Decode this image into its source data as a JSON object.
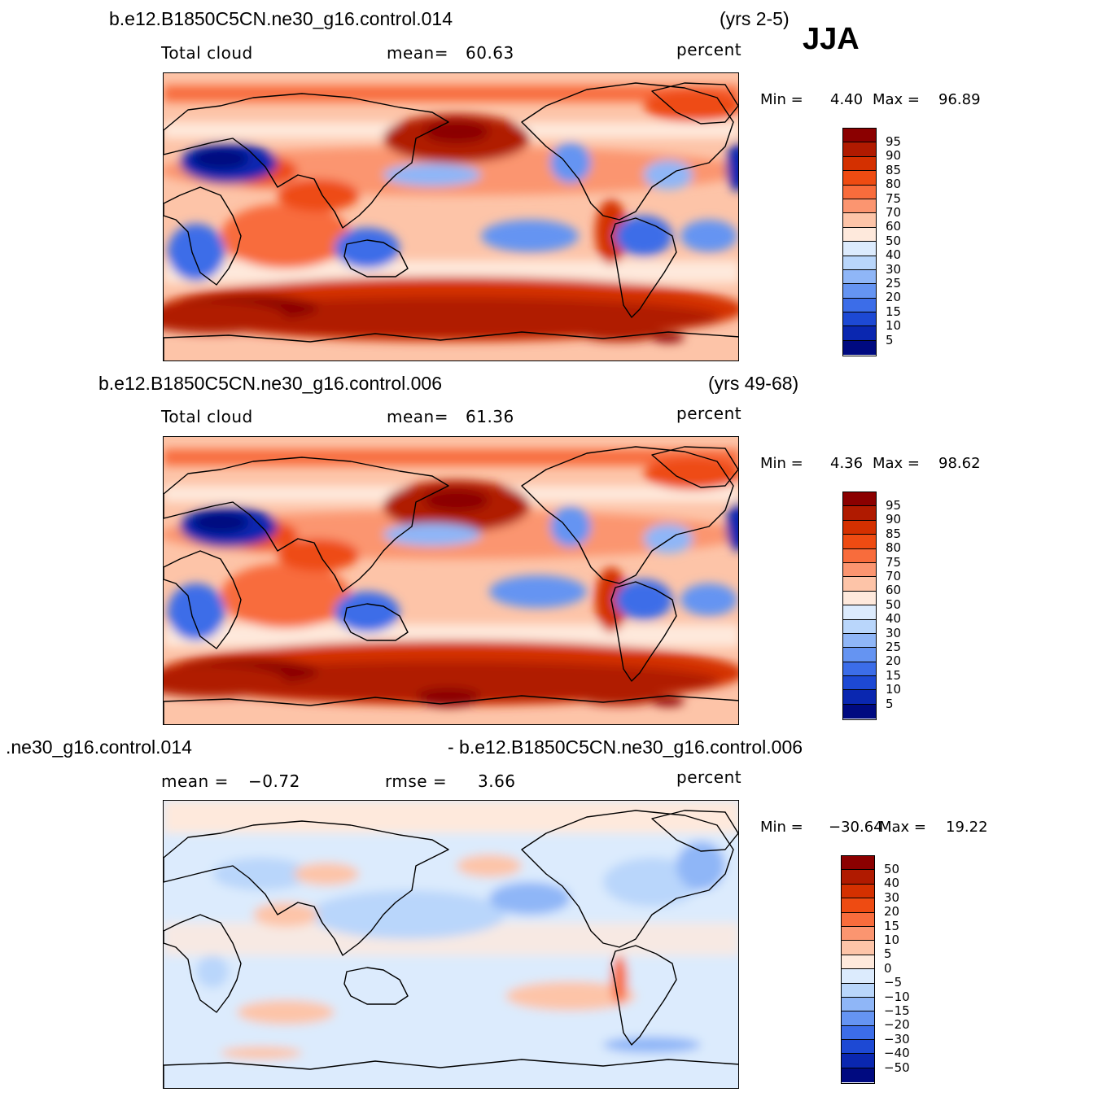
{
  "season": "JJA",
  "panels": [
    {
      "case": "b.e12.B1850C5CN.ne30_g16.control.014",
      "years": "(yrs 2-5)",
      "variable": "Total cloud",
      "stat1_label": "mean=",
      "stat1_value": "60.63",
      "units": "percent",
      "min_label": "Min =",
      "min_value": "4.40",
      "max_label": "Max =",
      "max_value": "96.89",
      "colorbar": [
        "95",
        "90",
        "85",
        "80",
        "75",
        "70",
        "60",
        "50",
        "40",
        "30",
        "25",
        "20",
        "15",
        "10",
        "5"
      ]
    },
    {
      "case": "b.e12.B1850C5CN.ne30_g16.control.006",
      "years": "(yrs 49-68)",
      "variable": "Total cloud",
      "stat1_label": "mean=",
      "stat1_value": "61.36",
      "units": "percent",
      "min_label": "Min =",
      "min_value": "4.36",
      "max_label": "Max =",
      "max_value": "98.62",
      "colorbar": [
        "95",
        "90",
        "85",
        "80",
        "75",
        "70",
        "60",
        "50",
        "40",
        "30",
        "25",
        "20",
        "15",
        "10",
        "5"
      ]
    },
    {
      "case_left": ".ne30_g16.control.014",
      "case_right": "- b.e12.B1850C5CN.ne30_g16.control.006",
      "stat1_label": "mean =",
      "stat1_value": "−0.72",
      "stat2_label": "rmse =",
      "stat2_value": "3.66",
      "units": "percent",
      "min_label": "Min =",
      "min_value": "−30.64",
      "max_label": "Max =",
      "max_value": "19.22",
      "colorbar": [
        "50",
        "40",
        "30",
        "20",
        "15",
        "10",
        "5",
        "0",
        "−5",
        "−10",
        "−15",
        "−20",
        "−30",
        "−40",
        "−50"
      ]
    }
  ],
  "palette": [
    "#8b0000",
    "#b01a00",
    "#d43000",
    "#ee4b12",
    "#f86c3c",
    "#fb9570",
    "#fdc4a8",
    "#fee9dc",
    "#dcebfd",
    "#b9d6fb",
    "#8fb6f7",
    "#6594f2",
    "#3c6de8",
    "#1d49d4",
    "#0a27b0",
    "#000a80"
  ]
}
